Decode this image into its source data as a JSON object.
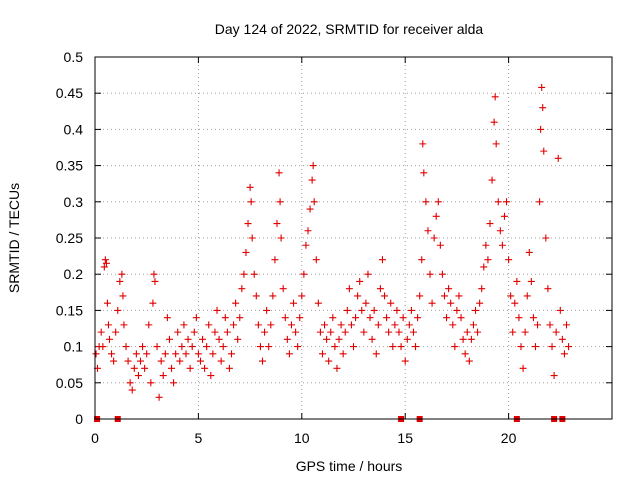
{
  "chart_data": {
    "type": "scatter",
    "title": "Day 124 of 2022, SRMTID for receiver alda",
    "xlabel": "GPS time / hours",
    "ylabel": "SRMTID / TECUs",
    "xlim": [
      0,
      25
    ],
    "ylim": [
      0,
      0.5
    ],
    "grid": true,
    "marker": "+",
    "color": "#e00000",
    "x_ticks": [
      0,
      5,
      10,
      15,
      20
    ],
    "x_tick_labels": [
      "0",
      "5",
      "10",
      "15",
      "20"
    ],
    "y_ticks": [
      0,
      0.05,
      0.1,
      0.15,
      0.2,
      0.25,
      0.3,
      0.35,
      0.4,
      0.45,
      0.5
    ],
    "y_tick_labels": [
      "0",
      "0.05",
      "0.1",
      "0.15",
      "0.2",
      "0.25",
      "0.3",
      "0.35",
      "0.4",
      "0.45",
      "0.5"
    ],
    "zero_markers_x": [
      0.1,
      1.1,
      14.8,
      15.7,
      20.4,
      22.2,
      22.6
    ],
    "series": [
      {
        "name": "SRMTID",
        "points": [
          [
            0.05,
            0.09
          ],
          [
            0.12,
            0.07
          ],
          [
            0.2,
            0.1
          ],
          [
            0.3,
            0.12
          ],
          [
            0.38,
            0.1
          ],
          [
            0.45,
            0.21
          ],
          [
            0.5,
            0.22
          ],
          [
            0.55,
            0.215
          ],
          [
            0.6,
            0.16
          ],
          [
            0.65,
            0.13
          ],
          [
            0.7,
            0.11
          ],
          [
            0.8,
            0.09
          ],
          [
            0.9,
            0.08
          ],
          [
            1.0,
            0.12
          ],
          [
            1.1,
            0.15
          ],
          [
            1.2,
            0.19
          ],
          [
            1.3,
            0.2
          ],
          [
            1.35,
            0.17
          ],
          [
            1.4,
            0.13
          ],
          [
            1.5,
            0.1
          ],
          [
            1.6,
            0.08
          ],
          [
            1.7,
            0.05
          ],
          [
            1.8,
            0.04
          ],
          [
            1.9,
            0.07
          ],
          [
            2.0,
            0.09
          ],
          [
            2.1,
            0.06
          ],
          [
            2.2,
            0.08
          ],
          [
            2.3,
            0.1
          ],
          [
            2.4,
            0.07
          ],
          [
            2.5,
            0.09
          ],
          [
            2.6,
            0.13
          ],
          [
            2.7,
            0.05
          ],
          [
            2.8,
            0.16
          ],
          [
            2.85,
            0.2
          ],
          [
            2.9,
            0.19
          ],
          [
            3.0,
            0.1
          ],
          [
            3.1,
            0.03
          ],
          [
            3.2,
            0.08
          ],
          [
            3.3,
            0.06
          ],
          [
            3.4,
            0.09
          ],
          [
            3.5,
            0.14
          ],
          [
            3.6,
            0.11
          ],
          [
            3.7,
            0.07
          ],
          [
            3.8,
            0.05
          ],
          [
            3.9,
            0.09
          ],
          [
            4.0,
            0.12
          ],
          [
            4.1,
            0.08
          ],
          [
            4.2,
            0.1
          ],
          [
            4.3,
            0.13
          ],
          [
            4.4,
            0.09
          ],
          [
            4.5,
            0.11
          ],
          [
            4.6,
            0.07
          ],
          [
            4.7,
            0.1
          ],
          [
            4.8,
            0.12
          ],
          [
            4.9,
            0.14
          ],
          [
            5.0,
            0.09
          ],
          [
            5.1,
            0.08
          ],
          [
            5.2,
            0.11
          ],
          [
            5.3,
            0.07
          ],
          [
            5.4,
            0.1
          ],
          [
            5.5,
            0.13
          ],
          [
            5.6,
            0.06
          ],
          [
            5.7,
            0.09
          ],
          [
            5.8,
            0.12
          ],
          [
            5.9,
            0.15
          ],
          [
            6.0,
            0.11
          ],
          [
            6.1,
            0.08
          ],
          [
            6.2,
            0.1
          ],
          [
            6.3,
            0.14
          ],
          [
            6.4,
            0.12
          ],
          [
            6.5,
            0.07
          ],
          [
            6.6,
            0.09
          ],
          [
            6.7,
            0.13
          ],
          [
            6.8,
            0.16
          ],
          [
            6.9,
            0.11
          ],
          [
            7.0,
            0.14
          ],
          [
            7.1,
            0.18
          ],
          [
            7.2,
            0.2
          ],
          [
            7.3,
            0.23
          ],
          [
            7.4,
            0.27
          ],
          [
            7.5,
            0.32
          ],
          [
            7.55,
            0.3
          ],
          [
            7.6,
            0.25
          ],
          [
            7.7,
            0.2
          ],
          [
            7.8,
            0.17
          ],
          [
            7.9,
            0.13
          ],
          [
            8.0,
            0.1
          ],
          [
            8.1,
            0.08
          ],
          [
            8.2,
            0.12
          ],
          [
            8.3,
            0.15
          ],
          [
            8.4,
            0.1
          ],
          [
            8.5,
            0.13
          ],
          [
            8.6,
            0.17
          ],
          [
            8.7,
            0.22
          ],
          [
            8.8,
            0.27
          ],
          [
            8.9,
            0.34
          ],
          [
            8.95,
            0.3
          ],
          [
            9.0,
            0.25
          ],
          [
            9.1,
            0.18
          ],
          [
            9.2,
            0.14
          ],
          [
            9.3,
            0.11
          ],
          [
            9.4,
            0.09
          ],
          [
            9.5,
            0.13
          ],
          [
            9.6,
            0.16
          ],
          [
            9.7,
            0.12
          ],
          [
            9.8,
            0.1
          ],
          [
            9.9,
            0.14
          ],
          [
            10.0,
            0.17
          ],
          [
            10.1,
            0.2
          ],
          [
            10.2,
            0.24
          ],
          [
            10.3,
            0.26
          ],
          [
            10.4,
            0.29
          ],
          [
            10.5,
            0.33
          ],
          [
            10.55,
            0.35
          ],
          [
            10.6,
            0.3
          ],
          [
            10.7,
            0.22
          ],
          [
            10.8,
            0.16
          ],
          [
            10.9,
            0.12
          ],
          [
            11.0,
            0.09
          ],
          [
            11.1,
            0.13
          ],
          [
            11.2,
            0.11
          ],
          [
            11.3,
            0.08
          ],
          [
            11.4,
            0.12
          ],
          [
            11.5,
            0.14
          ],
          [
            11.6,
            0.1
          ],
          [
            11.7,
            0.07
          ],
          [
            11.8,
            0.11
          ],
          [
            11.9,
            0.13
          ],
          [
            12.0,
            0.09
          ],
          [
            12.1,
            0.12
          ],
          [
            12.2,
            0.15
          ],
          [
            12.3,
            0.18
          ],
          [
            12.4,
            0.13
          ],
          [
            12.5,
            0.1
          ],
          [
            12.6,
            0.14
          ],
          [
            12.7,
            0.17
          ],
          [
            12.8,
            0.19
          ],
          [
            12.9,
            0.15
          ],
          [
            13.0,
            0.12
          ],
          [
            13.1,
            0.16
          ],
          [
            13.2,
            0.2
          ],
          [
            13.3,
            0.14
          ],
          [
            13.4,
            0.11
          ],
          [
            13.5,
            0.15
          ],
          [
            13.6,
            0.09
          ],
          [
            13.7,
            0.13
          ],
          [
            13.8,
            0.18
          ],
          [
            13.9,
            0.22
          ],
          [
            14.0,
            0.17
          ],
          [
            14.1,
            0.14
          ],
          [
            14.2,
            0.12
          ],
          [
            14.3,
            0.16
          ],
          [
            14.4,
            0.1
          ],
          [
            14.5,
            0.13
          ],
          [
            14.6,
            0.15
          ],
          [
            14.7,
            0.12
          ],
          [
            14.8,
            0.1
          ],
          [
            14.9,
            0.14
          ],
          [
            15.0,
            0.08
          ],
          [
            15.1,
            0.11
          ],
          [
            15.2,
            0.13
          ],
          [
            15.3,
            0.15
          ],
          [
            15.4,
            0.12
          ],
          [
            15.5,
            0.1
          ],
          [
            15.6,
            0.14
          ],
          [
            15.7,
            0.17
          ],
          [
            15.8,
            0.22
          ],
          [
            15.85,
            0.38
          ],
          [
            15.9,
            0.34
          ],
          [
            16.0,
            0.3
          ],
          [
            16.1,
            0.26
          ],
          [
            16.2,
            0.2
          ],
          [
            16.3,
            0.16
          ],
          [
            16.4,
            0.25
          ],
          [
            16.5,
            0.28
          ],
          [
            16.6,
            0.3
          ],
          [
            16.7,
            0.24
          ],
          [
            16.8,
            0.2
          ],
          [
            16.9,
            0.17
          ],
          [
            17.0,
            0.14
          ],
          [
            17.1,
            0.18
          ],
          [
            17.2,
            0.16
          ],
          [
            17.3,
            0.13
          ],
          [
            17.4,
            0.1
          ],
          [
            17.5,
            0.15
          ],
          [
            17.6,
            0.17
          ],
          [
            17.7,
            0.14
          ],
          [
            17.8,
            0.11
          ],
          [
            17.9,
            0.09
          ],
          [
            18.0,
            0.12
          ],
          [
            18.1,
            0.08
          ],
          [
            18.2,
            0.11
          ],
          [
            18.3,
            0.13
          ],
          [
            18.4,
            0.15
          ],
          [
            18.5,
            0.12
          ],
          [
            18.6,
            0.16
          ],
          [
            18.7,
            0.18
          ],
          [
            18.8,
            0.21
          ],
          [
            18.9,
            0.24
          ],
          [
            19.0,
            0.22
          ],
          [
            19.1,
            0.27
          ],
          [
            19.2,
            0.33
          ],
          [
            19.3,
            0.41
          ],
          [
            19.35,
            0.445
          ],
          [
            19.4,
            0.38
          ],
          [
            19.5,
            0.3
          ],
          [
            19.6,
            0.26
          ],
          [
            19.7,
            0.24
          ],
          [
            19.8,
            0.28
          ],
          [
            19.9,
            0.3
          ],
          [
            20.0,
            0.22
          ],
          [
            20.1,
            0.17
          ],
          [
            20.2,
            0.12
          ],
          [
            20.3,
            0.16
          ],
          [
            20.4,
            0.19
          ],
          [
            20.5,
            0.14
          ],
          [
            20.6,
            0.1
          ],
          [
            20.7,
            0.07
          ],
          [
            20.8,
            0.12
          ],
          [
            20.9,
            0.17
          ],
          [
            21.0,
            0.23
          ],
          [
            21.1,
            0.19
          ],
          [
            21.2,
            0.14
          ],
          [
            21.3,
            0.1
          ],
          [
            21.4,
            0.13
          ],
          [
            21.5,
            0.3
          ],
          [
            21.55,
            0.4
          ],
          [
            21.6,
            0.458
          ],
          [
            21.65,
            0.43
          ],
          [
            21.7,
            0.37
          ],
          [
            21.8,
            0.25
          ],
          [
            21.9,
            0.18
          ],
          [
            22.0,
            0.13
          ],
          [
            22.1,
            0.1
          ],
          [
            22.2,
            0.06
          ],
          [
            22.3,
            0.12
          ],
          [
            22.4,
            0.36
          ],
          [
            22.5,
            0.15
          ],
          [
            22.6,
            0.11
          ],
          [
            22.7,
            0.09
          ],
          [
            22.8,
            0.13
          ],
          [
            22.9,
            0.1
          ]
        ]
      }
    ]
  }
}
